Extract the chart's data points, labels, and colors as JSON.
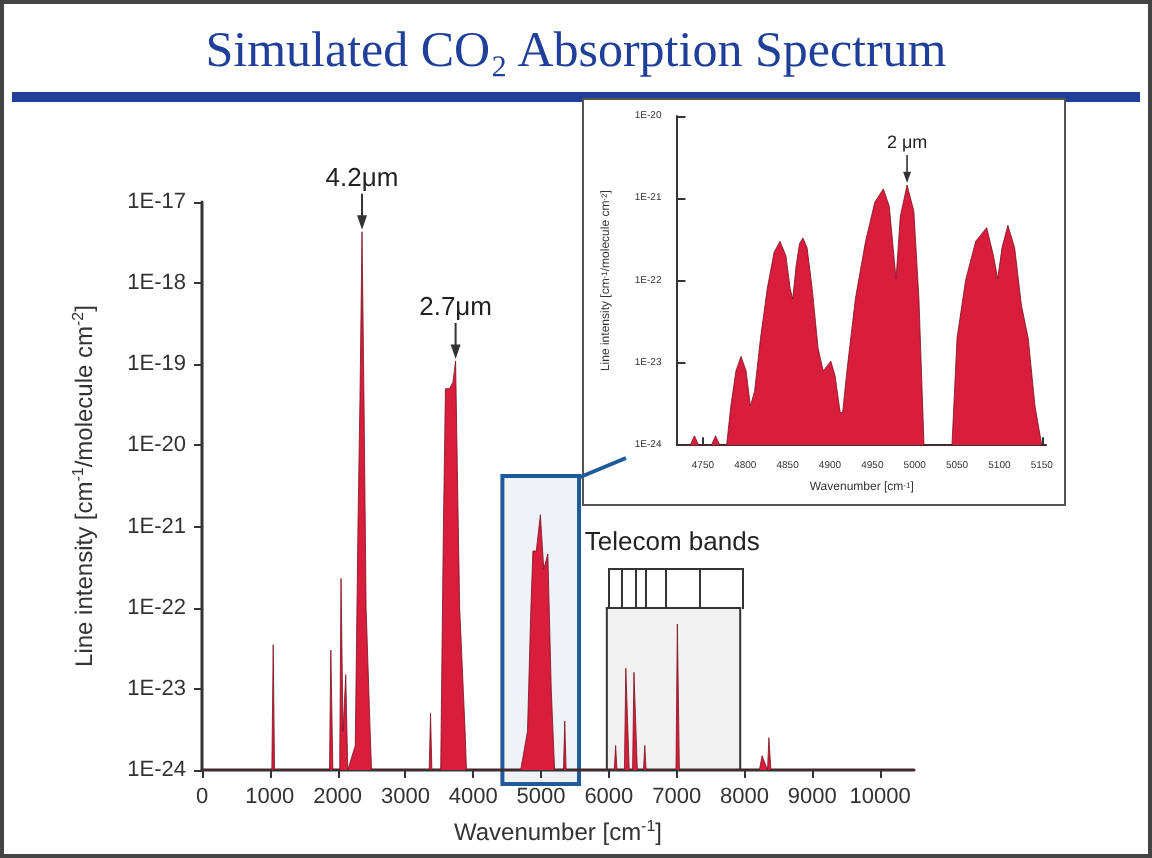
{
  "chart_data": [
    {
      "type": "area",
      "title": "Simulated CO₂ Absorption Spectrum",
      "xlabel": "Wavenumber [cm$^{-1}$]",
      "ylabel": "Line intensity [cm$^{-1}$/molecule cm$^{-2}$]",
      "log": "y",
      "xlim": [
        0,
        10500
      ],
      "xticks": [
        0,
        1000,
        2000,
        3000,
        4000,
        5000,
        6000,
        7000,
        8000,
        9000,
        10000
      ],
      "ylim": [
        1e-24,
        1e-17
      ],
      "yticks": [
        {
          "value": 1e-24,
          "label": "1E-24"
        },
        {
          "value": 1e-23,
          "label": "1E-23"
        },
        {
          "value": 1e-22,
          "label": "1E-22"
        },
        {
          "value": 1e-21,
          "label": "1E-21"
        },
        {
          "value": 1e-20,
          "label": "1E-20"
        },
        {
          "value": 1e-19,
          "label": "1E-19"
        },
        {
          "value": 1e-18,
          "label": "1E-18"
        },
        {
          "value": 1e-17,
          "label": "1E-17"
        }
      ],
      "grid": false,
      "marker": "none",
      "annotations": [
        {
          "text": "4.2μm",
          "x": 2360,
          "y": 4.3e-18
        },
        {
          "text": "2.7μm",
          "x": 3740,
          "y": 1.1e-19
        }
      ],
      "bands": [
        {
          "axis": "x",
          "from": 4430,
          "to": 5560,
          "color": "#1f5a9a"
        },
        {
          "axis": "x",
          "from": 5970,
          "to": 7937,
          "label": "Telecom bands",
          "color": "#333333"
        }
      ],
      "series": [
        {
          "color": "#d81e3c",
          "x": [
            0,
            1030,
            1050,
            1070,
            1880,
            1900,
            1930,
            2030,
            2050,
            2080,
            2120,
            2150,
            2260,
            2300,
            2330,
            2360,
            2390,
            2420,
            2480,
            2500,
            3350,
            3370,
            3390,
            3520,
            3560,
            3590,
            3650,
            3700,
            3740,
            3770,
            3800,
            3880,
            3900,
            4700,
            4800,
            4850,
            4880,
            4930,
            4990,
            5040,
            5100,
            5150,
            5200,
            5330,
            5350,
            5370,
            6080,
            6100,
            6120,
            6230,
            6250,
            6300,
            6350,
            6370,
            6420,
            6510,
            6530,
            6550,
            6990,
            7010,
            7040,
            8220,
            8260,
            8340,
            8360,
            8390,
            10500
          ],
          "values": [
            1e-24,
            1e-24,
            3.5e-23,
            1e-24,
            1e-24,
            3e-23,
            1e-24,
            1e-24,
            2.3e-22,
            3e-24,
            1.5e-23,
            1e-24,
            2e-24,
            1e-21,
            4e-20,
            4.3e-18,
            3e-20,
            1e-22,
            3e-24,
            1e-24,
            1e-24,
            5e-24,
            1e-24,
            1e-24,
            1e-21,
            5e-20,
            5e-20,
            6e-20,
            1.1e-19,
            3e-21,
            1e-22,
            3e-24,
            1e-24,
            1e-24,
            3e-24,
            1e-22,
            5e-22,
            5e-22,
            1.4e-21,
            3e-22,
            4.6e-22,
            1e-23,
            1e-24,
            1e-24,
            4e-24,
            1e-24,
            1e-24,
            2e-24,
            1e-24,
            1e-24,
            1.8e-23,
            1e-24,
            1e-24,
            1.6e-23,
            1e-24,
            1e-24,
            2e-24,
            1e-24,
            1e-24,
            6.3e-23,
            1e-24,
            1e-24,
            1.5e-24,
            1e-24,
            2.5e-24,
            1e-24,
            1e-24
          ]
        }
      ]
    },
    {
      "type": "area",
      "xlabel": "Wavenumber [cm$^{-1}$]",
      "ylabel": "Line intensity [cm$^{-1}$/molecule cm$^{-2}$]",
      "log": "y",
      "xlim": [
        4720,
        5155
      ],
      "xticks": [
        4750,
        4800,
        4850,
        4900,
        4950,
        5000,
        5050,
        5100,
        5150
      ],
      "ylim": [
        1e-24,
        1e-20
      ],
      "yticks": [
        {
          "value": 1e-24,
          "label": "1E-24"
        },
        {
          "value": 1e-23,
          "label": "1E-23"
        },
        {
          "value": 1e-22,
          "label": "1E-22"
        },
        {
          "value": 1e-21,
          "label": "1E-21"
        },
        {
          "value": 1e-20,
          "label": "1E-20"
        }
      ],
      "grid": false,
      "marker": "none",
      "annotations": [
        {
          "text": "2 μm",
          "x": 4991,
          "y": 1.45e-21
        }
      ],
      "series": [
        {
          "color": "#d81e3c",
          "x": [
            4720,
            4735,
            4740,
            4745,
            4760,
            4765,
            4770,
            4778,
            4783,
            4789,
            4795,
            4801,
            4806,
            4811,
            4818,
            4826,
            4834,
            4841,
            4848,
            4853,
            4856,
            4860,
            4864,
            4868,
            4873,
            4879,
            4886,
            4892,
            4896,
            4901,
            4906,
            4912,
            4915,
            4920,
            4930,
            4942,
            4953,
            4963,
            4970,
            4978,
            4983,
            4991,
            4999,
            5005,
            5011,
            5044,
            5050,
            5060,
            5072,
            5085,
            5093,
            5098,
            5103,
            5110,
            5118,
            5126,
            5134,
            5142,
            5150,
            5155
          ],
          "values": [
            1e-24,
            1e-24,
            1.3e-24,
            1e-24,
            1e-24,
            1.3e-24,
            1e-24,
            1e-24,
            3e-24,
            8e-24,
            1.2e-23,
            8e-24,
            3e-24,
            4.5e-24,
            2e-23,
            8e-23,
            2.2e-22,
            3e-22,
            2e-22,
            8e-23,
            6e-23,
            1.5e-22,
            2.8e-22,
            3.3e-22,
            2.5e-22,
            8e-23,
            1.5e-23,
            8e-24,
            9e-24,
            1.05e-23,
            7e-24,
            2.5e-24,
            2.5e-24,
            8e-24,
            6e-23,
            3e-22,
            9e-22,
            1.3e-21,
            8e-22,
            1.05e-22,
            6e-22,
            1.45e-21,
            7e-22,
            6e-23,
            1e-24,
            1e-24,
            2e-23,
            1e-22,
            3e-22,
            4.4e-22,
            2e-22,
            1.05e-22,
            2.5e-22,
            4.7e-22,
            2.5e-22,
            5e-23,
            2e-23,
            3e-24,
            1e-24,
            1e-24
          ]
        }
      ]
    }
  ]
}
